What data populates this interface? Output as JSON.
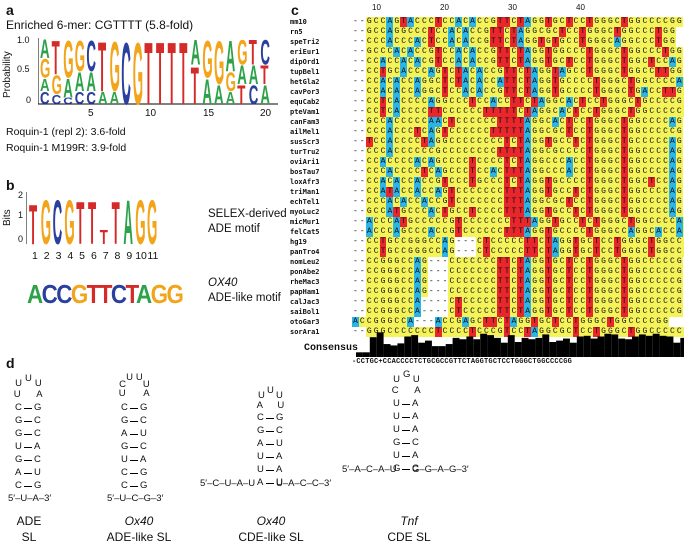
{
  "colors": {
    "A": "#2ea24a",
    "C": "#2a3f9e",
    "G": "#f2a51a",
    "T": "#d42a28",
    "U": "#d42a28",
    "aln_A": "#2bb5e6",
    "aln_C": "#f5f35a",
    "aln_G": "#f5f35a",
    "aln_T": "#e8262c",
    "aln_gap": "#ffffff"
  },
  "panel_a": {
    "label": "a",
    "title": "Enriched 6-mer: CGTTTT (5.8-fold)",
    "ylabel": "Probability",
    "yticks": [
      "1.0",
      "0.5",
      "0"
    ],
    "xticks": [
      "5",
      "10",
      "15",
      "20"
    ],
    "note1": "Roquin-1 (repl 2): 3.6-fold",
    "note2": "Roquin-1 M199R: 3.9-fold"
  },
  "panel_b": {
    "label": "b",
    "ylabel": "Bits",
    "yticks": [
      "2",
      "1",
      "0"
    ],
    "xticks": [
      "1",
      "2",
      "3",
      "4",
      "5",
      "6",
      "7",
      "8",
      "9",
      "10",
      "11"
    ],
    "motif_caption1": "SELEX-derived",
    "motif_caption2": "ADE motif",
    "ox40_seq": "ACCGTTCTAGG",
    "ox40_caption1": "OX40",
    "ox40_caption2": "ADE-like motif"
  },
  "panel_c": {
    "label": "c",
    "ruler": [
      "10",
      "20",
      "30",
      "40"
    ],
    "species": [
      "mm10",
      "rn5",
      "speTri2",
      "eriEur1",
      "dipOrd1",
      "tupBel1",
      "hetGla2",
      "cavPor3",
      "equCab2",
      "pteVam1",
      "canFam3",
      "ailMel1",
      "susScr3",
      "turTru2",
      "oviAri1",
      "bosTau7",
      "loxAfr3",
      "triMan1",
      "echTel1",
      "myoLuc2",
      "micMur1",
      "felCat5",
      "hg19",
      "panTro4",
      "nomLeu2",
      "ponAbe2",
      "rheMac3",
      "papHam1",
      "calJac3",
      "saiBol1",
      "otoGar3",
      "sorAra1"
    ],
    "sequences": [
      "--GCCAGTACCCTCCACACCGTTCTAGGTGCTCCTGGGCTGGCCCCGG",
      "--GCCAGGCCCTCCACACCGTTCTAGGCGCTCCTGGGCTGGCCCTGG",
      "--CCCACCCACTCCACACCGTTCTAGGTGTGCCTGGGCAGGCCCTGG",
      "--GCCCACACCGTCCACACCGTTCTAGGTGGCCCTGGGCTGGCCCTGG",
      "--CCACCACACGTCCACACCGTTCTAGGTGCTCCTGGGCTGGCTCCAG",
      "--CCTGCACCCAGTCTACACCGTTCTAGGTAGCCTGGGCTGGCCTTGG",
      "--CCACACCAGGCTCTACACCATTCTAGGTGCCCCTGGGCTGGCCCCAG",
      "--CCACACCAGGCTCCACACCGTTCTAGGTGCCCCTGGGCTGACCTTGG",
      "--CCTCACCCCAGGCCCTCCACCTTCTAGGCACTCCTGGGCTGCCCCGG",
      "--CCTCACCCCTTCCCCCCTTTTTCTAGGCACTCCTGGGCTGGCCCCCG",
      "--GCCACCCCCAACTCCCCCCTTTTAGGCACTCCTGGGCTGGCCCCAG",
      "--CCCACCCTCAGTCCCCCCTTTTTAGGCGCTCCTGGGCTGGCCCCCG",
      "--TCCACCCCTAGGCCCCCCCCTCTAGGTGCCTCTGGGCTGCCCCCAG",
      "--CCCACCCCCCGCCCCCCCCTTTTAGGCGCCCCTGGGCTGGCCCCAG",
      "--CCACCCCACAGCCCCTCCCCTCTAGGCCCACCTGGGCTGGCCCCAG",
      "--CCCACCCCTCAGCCCTCCACTTTAGGCCCACCTGGGCTGGCCCCAG",
      "--CCACACCACCGTCCCTGCCCTCTAGGTGCCCCTGGGCTGGCTCCAG",
      "--CCATACCACCAGTCCCCCCCTTTAGGTGCCTCTGGGCTGGCCCCAG",
      "--CCCACACCACCGTCCCCCCCTTTAGGCGCTCCTGGGCTGGCCCCAG",
      "--GCCATGCCCACTGCCTCCCCTTTAGGTGCCTCTGGGCTGGCCCCAG",
      "--ACCCATGCCCCCGTCCCCCCCTTTAGGTGCCTCTGGGCTGGCCCCAG",
      "--ACCCAGCCCACCGTCCCCCCTTTAGGTGCCCCTGGGCCAGGCACCAG",
      "--CCTGCCGGGCCAG---CTCCCCCTTCTAGGTGCTCCTGGGCTGGCCCCCG",
      "--CCTGCCGGGCCAG---CTCCCCCTTCTAGGTGCTCCTGGGCTGGCCCCCG",
      "--CCGGGCCAG---CCCCCCCTTCTAGGTGCTCCTGGGCTGGCCCCCG",
      "--CCGGGCCAG---CCCCCCCTTCTAGGTGCTCCTGGGCTGGCCCCCG",
      "--CCGGGCCAG---CCCCCCCTTCTAGGTGCTCCTGGGCTGGCCCCCG",
      "--CCGGGCCAG---CCCCCCCTTCTAGGTGCTCCTGGGCTGGCCCCCG",
      "--CCGGGCCA----CTCCCCCTTCTAGGTGCTCCTGGGCTGGCCCCCG",
      "--CCGGGCCA----CTCCCCCTTCTAGGTGCTCCTGGGCTGGCCCCCG",
      "ACCGGGCCA---ACCGAGCTTCTAGGTGCTCCTGGGCTGGCCCCGG",
      "--GGGCCCCCCCTCCCCTCCCGTCCTAGGCGCTCCTGGGCTGGCCCCCG"
    ],
    "consensus_label": "Consensus",
    "consensus": "-CCTGC+CCACCCCTCTGCGCCGTTCTAGGTGCTCCTGGGCTGGCCCCGG"
  },
  "panel_d": {
    "label": "d",
    "structures": [
      {
        "name": "ADE",
        "subtitle": "SL"
      },
      {
        "name": "Ox40",
        "subtitle": "ADE-like SL"
      },
      {
        "name": "Ox40",
        "subtitle": "CDE-like SL"
      },
      {
        "name": "Tnf",
        "subtitle": "CDE SL"
      }
    ],
    "s1": {
      "loop": [
        "U",
        "U",
        "U",
        "U",
        "A"
      ],
      "pairs": [
        [
          "C",
          "G"
        ],
        [
          "G",
          "C"
        ],
        [
          "G",
          "C"
        ],
        [
          "U",
          "A"
        ],
        [
          "G",
          "C"
        ],
        [
          "A",
          "U"
        ],
        [
          "C",
          "G"
        ]
      ],
      "tail": "5′–U–A–3′"
    },
    "s2": {
      "loop": [
        "U",
        "C",
        "U",
        "U",
        "U",
        "A"
      ],
      "pairs": [
        [
          "C",
          "G"
        ],
        [
          "G",
          "C"
        ],
        [
          "A",
          "U"
        ],
        [
          "G",
          "C"
        ],
        [
          "U",
          "A"
        ],
        [
          "C",
          "G"
        ],
        [
          "C",
          "G"
        ]
      ],
      "tail": "5′–U–C–G–3′"
    },
    "s3": {
      "loop": [
        "A",
        "U",
        "U",
        "U",
        "U"
      ],
      "pairs": [
        [
          "C",
          "G"
        ],
        [
          "G",
          "C"
        ],
        [
          "A",
          "U"
        ],
        [
          "U",
          "A"
        ],
        [
          "U",
          "A"
        ],
        [
          "A",
          "U"
        ]
      ],
      "tail5": "5′–C–U–A–U",
      "tail3": "U–A–C–C–3′"
    },
    "s4": {
      "loop": [
        "C",
        "U",
        "G",
        "U",
        "A"
      ],
      "pairs": [
        [
          "U",
          "A"
        ],
        [
          "U",
          "A"
        ],
        [
          "U",
          "A"
        ],
        [
          "G",
          "C"
        ],
        [
          "U",
          "A"
        ],
        [
          "G",
          "C"
        ]
      ],
      "tail5": "5′–A–C–A–U",
      "tail3": "G–G–A–G–3′"
    }
  }
}
